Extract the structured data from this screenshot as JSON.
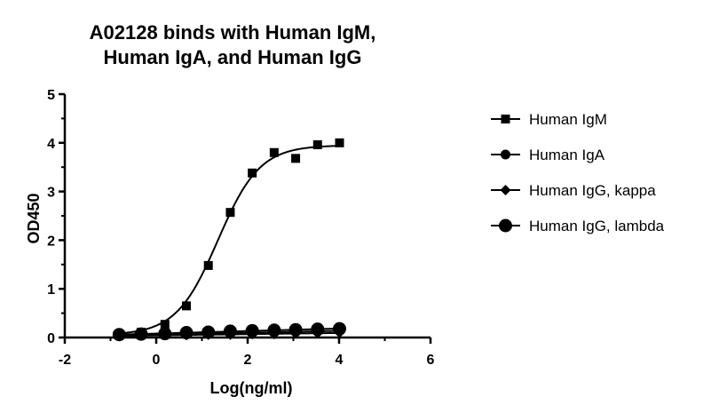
{
  "chart_data": {
    "type": "scatter",
    "title_lines": [
      "A02128 binds with Human IgM,",
      "Human IgA, and Human IgG"
    ],
    "xlabel": "Log(ng/ml)",
    "ylabel": "OD450",
    "xlim": [
      -2,
      6
    ],
    "ylim": [
      0,
      5
    ],
    "x_ticks": [
      "-2",
      "0",
      "2",
      "4",
      "6"
    ],
    "y_ticks": [
      "0",
      "1",
      "2",
      "3",
      "4",
      "5"
    ],
    "grid": false,
    "legend_position": "right",
    "x": [
      -0.81,
      -0.33,
      0.19,
      0.66,
      1.14,
      1.62,
      2.1,
      2.58,
      3.05,
      3.53,
      4.01
    ],
    "series": [
      {
        "name": "Human IgM",
        "marker": "square",
        "values": [
          0.06,
          0.11,
          0.27,
          0.65,
          1.48,
          2.57,
          3.38,
          3.8,
          3.68,
          3.96,
          4.0
        ]
      },
      {
        "name": "Human IgA",
        "marker": "circle",
        "values": [
          0.05,
          0.05,
          0.05,
          0.06,
          0.07,
          0.08,
          0.09,
          0.1,
          0.12,
          0.13,
          0.15
        ]
      },
      {
        "name": "Human IgG, kappa",
        "marker": "diamond",
        "values": [
          0.04,
          0.04,
          0.05,
          0.05,
          0.06,
          0.06,
          0.07,
          0.07,
          0.08,
          0.09,
          0.1
        ]
      },
      {
        "name": "Human IgG, lambda",
        "marker": "big-circle",
        "values": [
          0.06,
          0.07,
          0.08,
          0.1,
          0.11,
          0.13,
          0.14,
          0.15,
          0.16,
          0.17,
          0.18
        ]
      }
    ]
  }
}
